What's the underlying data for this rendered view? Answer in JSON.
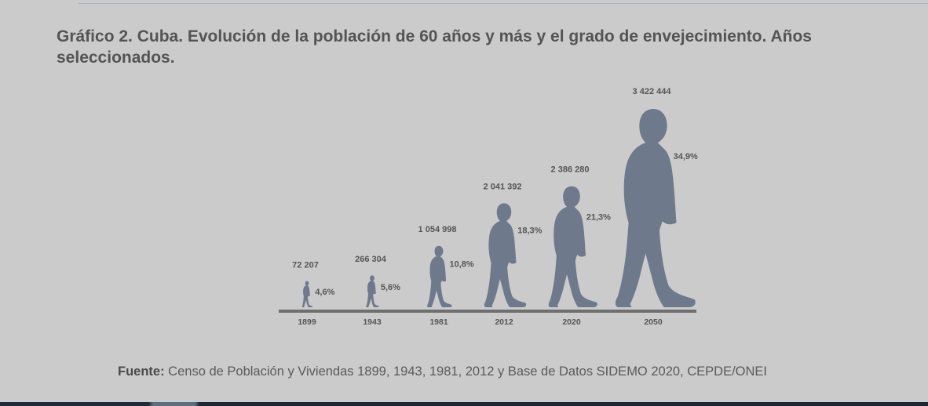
{
  "title": "Gráfico 2. Cuba. Evolución de la población de 60 años y más y el grado de envejecimiento. Años seleccionados.",
  "source_label": "Fuente:",
  "source_text": " Censo de Población y Viviendas 1899, 1943, 1981, 2012 y Base de Datos SIDEMO 2020, CEPDE/ONEI",
  "colors": {
    "figure": "#6e7a8c",
    "baseline": "#6f6f6f",
    "label": "#555555",
    "background": "#cbcbcb"
  },
  "chart_data": {
    "type": "pictograph",
    "categories": [
      "1899",
      "1943",
      "1981",
      "2012",
      "2020",
      "2050"
    ],
    "series": [
      {
        "values": [
          72207,
          266304,
          1054998,
          2041392,
          2386280,
          3422444
        ],
        "labels": [
          "72 207",
          "266 304",
          "1 054 998",
          "2 041 392",
          "2 386 280",
          "3 422 444"
        ]
      },
      {
        "values": [
          4.6,
          5.6,
          10.8,
          18.3,
          21.3,
          34.9
        ],
        "labels": [
          "4,6%",
          "5,6%",
          "10,8%",
          "18,3%",
          "21,3%",
          "34,9%"
        ]
      }
    ]
  }
}
